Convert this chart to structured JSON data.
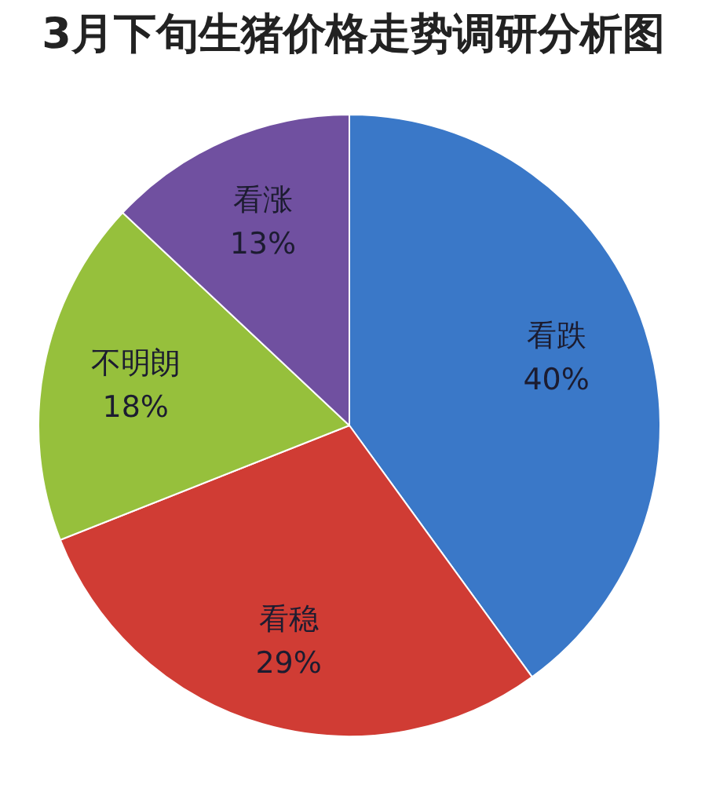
{
  "chart_data": {
    "type": "pie",
    "title": "3月下旬生猪价格走势调研分析图",
    "categories": [
      "看跌",
      "看稳",
      "不明朗",
      "看涨"
    ],
    "values": [
      40,
      29,
      18,
      13
    ],
    "colors": [
      "#3a78c8",
      "#d03c34",
      "#96c03c",
      "#7050a0"
    ],
    "value_labels": [
      "40%",
      "29%",
      "18%",
      "13%"
    ]
  }
}
